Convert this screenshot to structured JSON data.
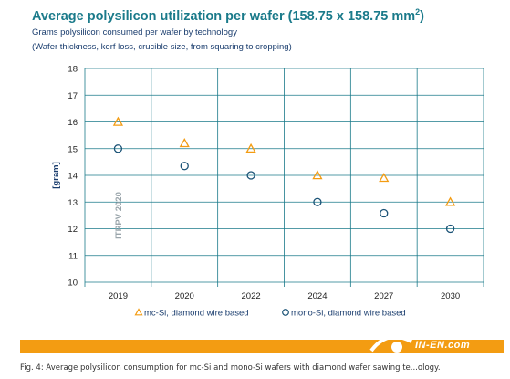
{
  "title_prefix": "Average polysilicon utilization per wafer (158.75 x 158.75 mm",
  "title_superscript": "2",
  "title_suffix": ")",
  "subtitle": "Grams polysilicon consumed per wafer by technology",
  "note": "(Wafer thickness, kerf loss, crucible size, from squaring to cropping)",
  "watermark": "ITRPV 2020",
  "caption": "Fig. 4: Average polysilicon consumption for mc-Si and mono-Si wafers with diamond wafer sawing te...ology.",
  "logo_text": "IN-EN.com",
  "colors": {
    "accent_orange": "#f39c12",
    "mono_blue": "#1a5276",
    "grid": "#1a7a8a",
    "title": "#1a7a8a"
  },
  "chart_data": {
    "type": "scatter",
    "title": "Average polysilicon utilization per wafer (158.75 x 158.75 mm²)",
    "ylabel": "[gram]",
    "xlabel": "",
    "categories": [
      "2019",
      "2020",
      "2022",
      "2024",
      "2027",
      "2030"
    ],
    "ylim": [
      10,
      18
    ],
    "yticks": [
      10,
      11,
      12,
      13,
      14,
      15,
      16,
      17,
      18
    ],
    "grid": true,
    "legend_position": "bottom",
    "series": [
      {
        "name": "mc-Si, diamond wire based",
        "marker": "triangle",
        "color": "#f39c12",
        "values": [
          16.0,
          15.2,
          15.0,
          14.0,
          13.9,
          13.0
        ]
      },
      {
        "name": "mono-Si, diamond wire based",
        "marker": "circle",
        "color": "#1a5276",
        "values": [
          15.0,
          14.35,
          14.0,
          13.0,
          12.58,
          12.0
        ]
      }
    ]
  }
}
